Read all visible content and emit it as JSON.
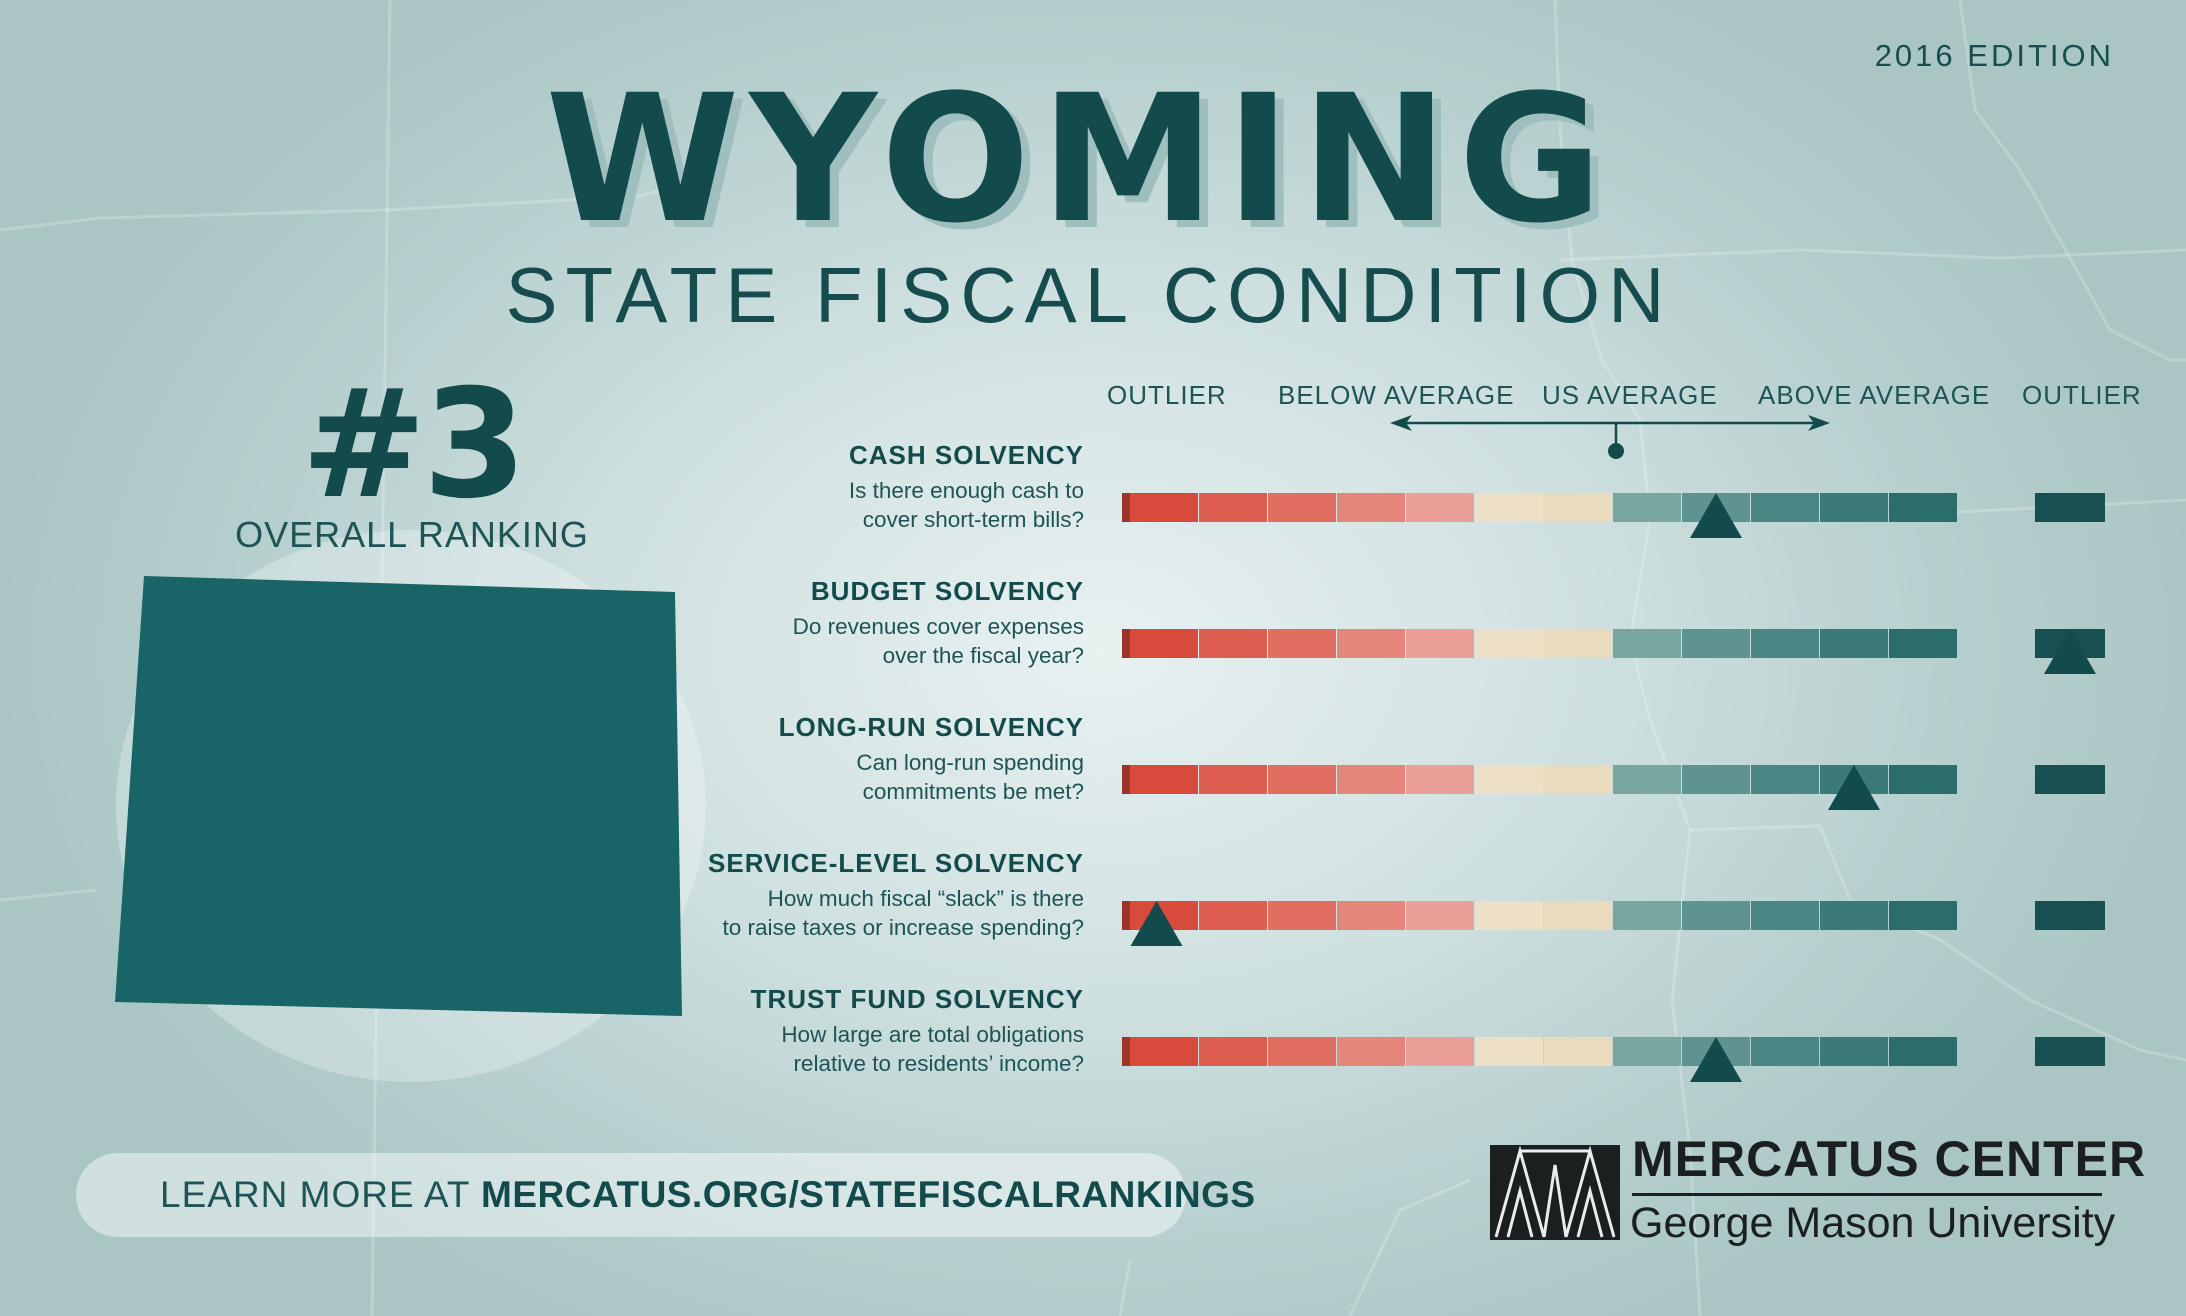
{
  "edition": "2016 EDITION",
  "title": "WYOMING",
  "subtitle": "STATE FISCAL CONDITION",
  "ranking": {
    "number": "#3",
    "label": "OVERALL RANKING"
  },
  "scale": {
    "labels": [
      "OUTLIER",
      "BELOW AVERAGE",
      "US AVERAGE",
      "ABOVE AVERAGE",
      "OUTLIER"
    ],
    "segments": 14,
    "segment_colors": [
      "#9b3529",
      "#d84a3b",
      "#dd5e50",
      "#e06f62",
      "#e4867a",
      "#eaa096",
      "#ede0c6",
      "#eadbbc",
      "#7aa6a2",
      "#5f9390",
      "#4a8683",
      "#3a7a77",
      "#2a6d6b",
      "#184f50"
    ]
  },
  "indicators": [
    {
      "name": "CASH SOLVENCY",
      "question_line1": "Is there enough cash to",
      "question_line2": "cover short-term bills?",
      "marker_segment": 9
    },
    {
      "name": "BUDGET SOLVENCY",
      "question_line1": "Do revenues cover expenses",
      "question_line2": "over the fiscal year?",
      "marker_segment": 13
    },
    {
      "name": "LONG-RUN SOLVENCY",
      "question_line1": "Can long-run spending",
      "question_line2": "commitments be met?",
      "marker_segment": 11
    },
    {
      "name": "SERVICE-LEVEL SOLVENCY",
      "question_line1": "How much fiscal “slack” is there",
      "question_line2": "to raise taxes or increase spending?",
      "marker_segment": 0
    },
    {
      "name": "TRUST FUND SOLVENCY",
      "question_line1": "How large are total obligations",
      "question_line2": "relative to residents’ income?",
      "marker_segment": 9
    }
  ],
  "footer": {
    "learn_prefix": "LEARN MORE AT ",
    "learn_url": "MERCATUS.ORG/STATEFISCALRANKINGS"
  },
  "logo": {
    "name": "MERCATUS CENTER",
    "sub": "George Mason University"
  },
  "colors": {
    "primary": "#134a4b",
    "state_fill": "#186466",
    "marker": "#134a4b"
  }
}
